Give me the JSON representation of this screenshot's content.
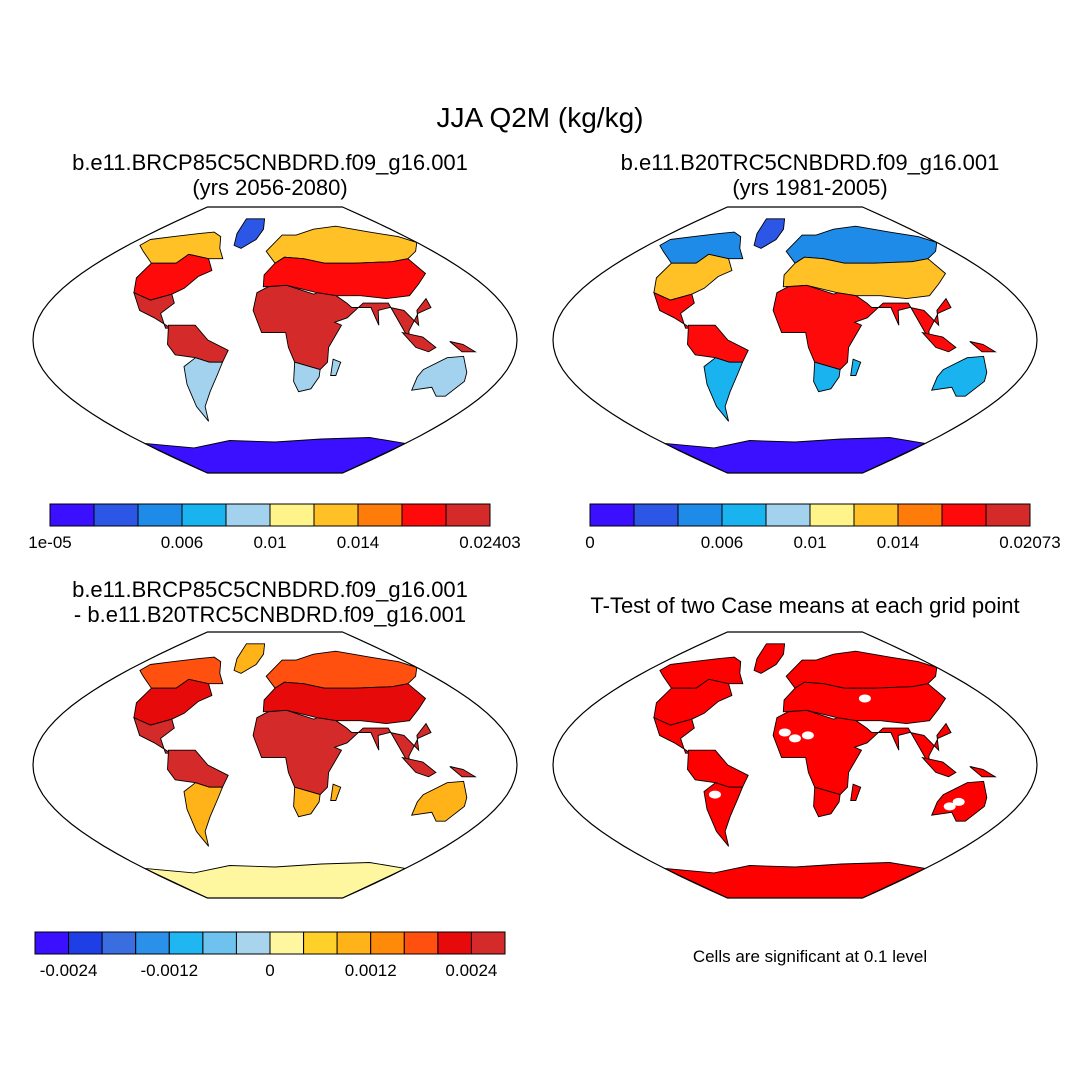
{
  "title": "JJA Q2M (kg/kg)",
  "panels": [
    {
      "id": "case1",
      "title_line1": "b.e11.BRCP85C5CNBDRD.f09_g16.001",
      "title_line2": "(yrs 2056-2080)",
      "colors": [
        "#3b0fff",
        "#2c56e6",
        "#1f8be8",
        "#19b3f0",
        "#a3d2ee",
        "#fff48a",
        "#ffc125",
        "#ff7c0a",
        "#ff0a0a",
        "#d42a2a"
      ],
      "tick_labels": [
        "1e-05",
        "0.006",
        "0.01",
        "0.014",
        "0.02403"
      ],
      "tick_positions": [
        0,
        3,
        5,
        7,
        10
      ],
      "land": {
        "north": 6,
        "mid": 8,
        "tropic": 9,
        "south": 4,
        "antarctic": 0,
        "greenland": 1
      }
    },
    {
      "id": "case2",
      "title_line1": "b.e11.B20TRC5CNBDRD.f09_g16.001",
      "title_line2": "(yrs 1981-2005)",
      "colors": [
        "#3b0fff",
        "#2c56e6",
        "#1f8be8",
        "#19b3f0",
        "#a3d2ee",
        "#fff48a",
        "#ffc125",
        "#ff7c0a",
        "#ff0a0a",
        "#d42a2a"
      ],
      "tick_labels": [
        "0",
        "0.006",
        "0.01",
        "0.014",
        "0.02073"
      ],
      "tick_positions": [
        0,
        3,
        5,
        7,
        10
      ],
      "land": {
        "north": 2,
        "mid": 6,
        "tropic": 8,
        "south": 3,
        "antarctic": 0,
        "greenland": 1
      }
    },
    {
      "id": "difference",
      "title_line1": "b.e11.BRCP85C5CNBDRD.f09_g16.001",
      "title_line2": "- b.e11.B20TRC5CNBDRD.f09_g16.001",
      "colors": [
        "#3b0fff",
        "#1f3fe6",
        "#3a6ee0",
        "#2a90ea",
        "#1fb6f2",
        "#6ec2ee",
        "#a8d4ee",
        "#fff7a0",
        "#ffd02a",
        "#ffb319",
        "#ff8a0a",
        "#ff5010",
        "#e60a0a",
        "#d42a2a"
      ],
      "tick_labels": [
        "-0.0024",
        "-0.0012",
        "0",
        "0.0012",
        "0.0024"
      ],
      "tick_positions": [
        1,
        4,
        7,
        10,
        13
      ],
      "land": {
        "north": 11,
        "mid": 12,
        "tropic": 13,
        "south": 9,
        "antarctic": 7,
        "greenland": 9
      }
    },
    {
      "id": "ttest",
      "title_line1": "T-Test of two Case means at each grid point",
      "title_line2": "",
      "significant_color": "#ff0000",
      "note": "Cells are significant at 0.1 level"
    }
  ]
}
